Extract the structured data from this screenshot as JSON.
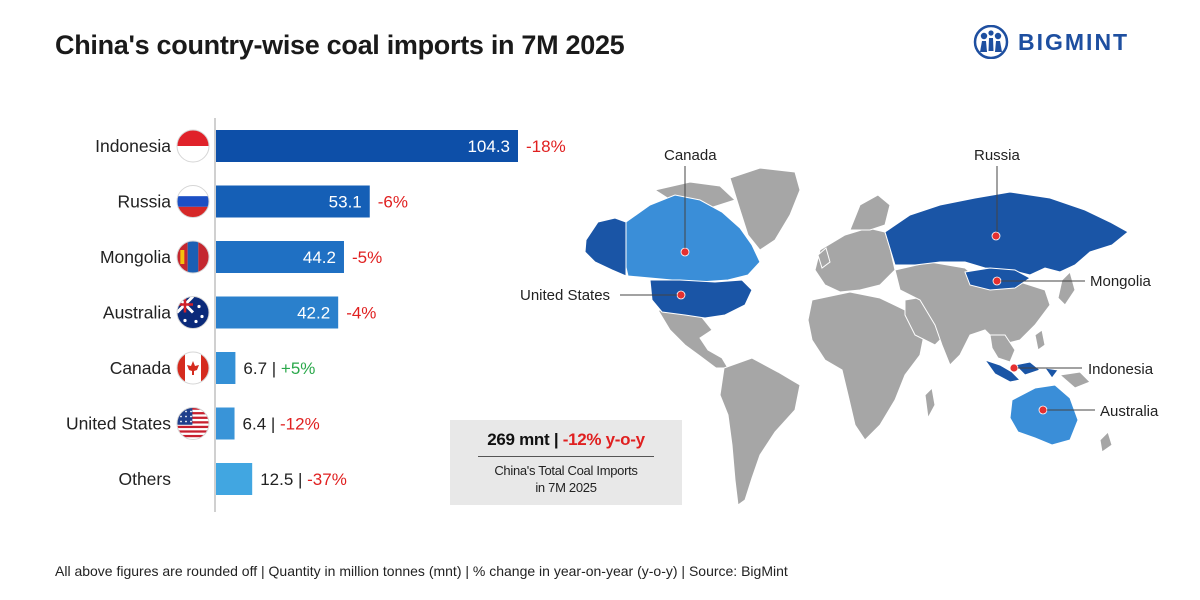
{
  "title": "China's country-wise coal imports in 7M 2025",
  "brand": {
    "name": "BIGMINT",
    "color": "#1e4fa0"
  },
  "chart_data": {
    "type": "bar",
    "orientation": "horizontal",
    "title": "China's country-wise coal imports in 7M 2025",
    "unit": "mnt",
    "categories": [
      "Indonesia",
      "Russia",
      "Mongolia",
      "Australia",
      "Canada",
      "United States",
      "Others"
    ],
    "values": [
      104.3,
      53.1,
      44.2,
      42.2,
      6.7,
      6.4,
      12.5
    ],
    "value_labels": [
      "104.3",
      "53.1",
      "44.2",
      "42.2",
      "6.7",
      "6.4",
      "12.5"
    ],
    "yoy_change": [
      "-18%",
      "-6%",
      "-5%",
      "-4%",
      "+5%",
      "-12%",
      "-37%"
    ],
    "yoy_numeric": [
      -18,
      -6,
      -5,
      -4,
      5,
      -12,
      -37
    ],
    "bar_colors": [
      "#0d4fa8",
      "#155fb6",
      "#1f70c3",
      "#2a80cc",
      "#3490d6",
      "#3994d8",
      "#41a6e1"
    ],
    "flags": [
      "indonesia-flag-icon",
      "russia-flag-icon",
      "mongolia-flag-icon",
      "australia-flag-icon",
      "canada-flag-icon",
      "us-flag-icon",
      null
    ],
    "xlim": [
      0,
      104.3
    ],
    "legend": "none",
    "grid": false
  },
  "map": {
    "labels": {
      "canada": "Canada",
      "russia": "Russia",
      "united_states": "United States",
      "mongolia": "Mongolia",
      "indonesia": "Indonesia",
      "australia": "Australia"
    },
    "highlight_colors": {
      "dark": "#1a55a6",
      "light": "#3a8ed8",
      "other": "#a6a6a6",
      "marker": "#e53030"
    }
  },
  "summary": {
    "total": "269 mnt",
    "separator": "|",
    "change": "-12% y-o-y",
    "caption_line1": "China's Total Coal Imports",
    "caption_line2": "in 7M 2025"
  },
  "footer": "All above figures are rounded off | Quantity in million tonnes (mnt) | % change in year-on-year (y-o-y) | Source: BigMint",
  "colors": {
    "negative": "#e02020",
    "positive": "#2aa84a"
  }
}
